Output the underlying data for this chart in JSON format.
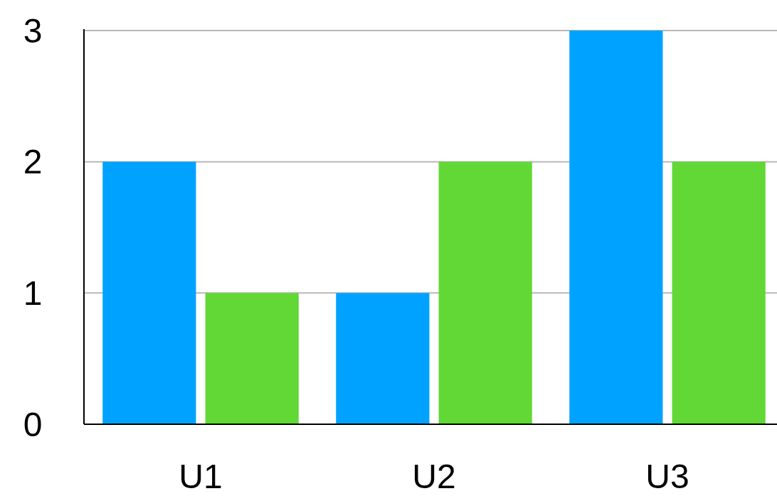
{
  "chart_data": {
    "type": "bar",
    "categories": [
      "U1",
      "U2",
      "U3"
    ],
    "series": [
      {
        "color": "#00a2ff",
        "values": [
          2,
          1,
          3
        ]
      },
      {
        "color": "#61d836",
        "values": [
          1,
          2,
          2
        ]
      }
    ],
    "ylim": [
      0,
      3
    ],
    "yticks": [
      0,
      1,
      2,
      3
    ],
    "grid": "y"
  }
}
